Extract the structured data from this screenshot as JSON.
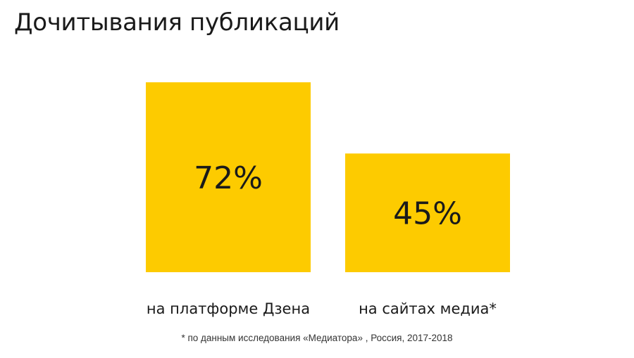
{
  "title": "Дочитывания публикаций",
  "footnote": "* по данным исследования «Медиатора» , Россия, 2017-2018",
  "colors": {
    "bar": "#fdcb00",
    "text": "#1a1a1a"
  },
  "chart_data": {
    "type": "bar",
    "title": "Дочитывания публикаций",
    "categories": [
      "на платформе Дзена",
      "на сайтах медиа*"
    ],
    "values": [
      72,
      45
    ],
    "value_labels": [
      "72%",
      "45%"
    ],
    "unit": "%",
    "ylim": [
      0,
      100
    ],
    "grid": false,
    "legend": "none"
  }
}
